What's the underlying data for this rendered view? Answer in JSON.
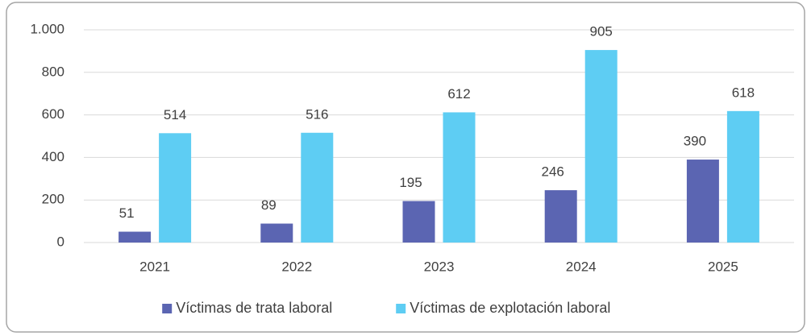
{
  "chart_data": {
    "type": "bar",
    "categories": [
      "2021",
      "2022",
      "2023",
      "2024",
      "2025"
    ],
    "series": [
      {
        "name": "Víctimas de trata laboral",
        "color": "#5b65b2",
        "values": [
          51,
          89,
          195,
          246,
          390
        ]
      },
      {
        "name": "Víctimas de explotación laboral",
        "color": "#5ecdf3",
        "values": [
          514,
          516,
          612,
          905,
          618
        ]
      }
    ],
    "ylim": [
      0,
      1000
    ],
    "yticks": [
      0,
      200,
      400,
      600,
      800,
      {
        "value": 1000,
        "label": "1.000"
      }
    ],
    "grid": true,
    "legend": "bottom"
  }
}
